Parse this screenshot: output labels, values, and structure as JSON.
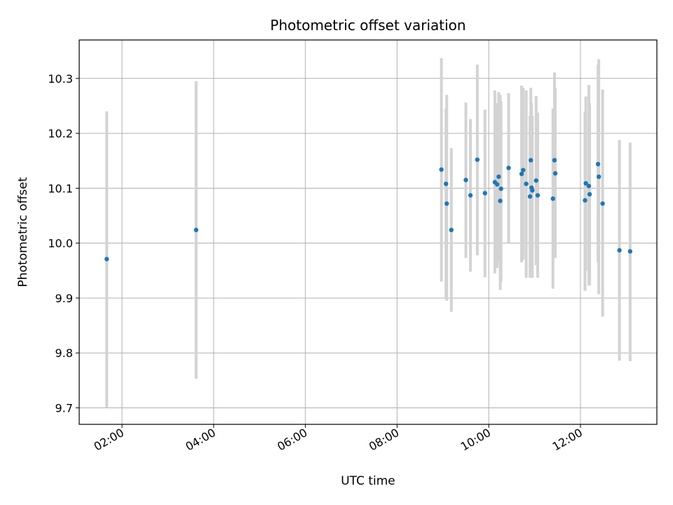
{
  "chart_data": {
    "type": "scatter",
    "title": "Photometric offset variation",
    "xlabel": "UTC time",
    "ylabel": "Photometric offset",
    "x_unit": "hours",
    "xlim": [
      "01:04",
      "13:40"
    ],
    "ylim": [
      9.67,
      10.37
    ],
    "grid": true,
    "x_ticks": [
      "02:00",
      "04:00",
      "06:00",
      "08:00",
      "10:00",
      "12:00"
    ],
    "y_ticks": [
      "9.7",
      "9.8",
      "9.9",
      "10.0",
      "10.1",
      "10.2",
      "10.3"
    ],
    "marker_color": "#1f77b4",
    "errorbar_color": "#d3d3d3",
    "points": [
      {
        "x": "01:40",
        "y": 9.971,
        "lo": 9.7,
        "hi": 10.24
      },
      {
        "x": "03:37",
        "y": 10.024,
        "lo": 9.753,
        "hi": 10.295
      },
      {
        "x": "08:58",
        "y": 10.134,
        "lo": 9.93,
        "hi": 10.337
      },
      {
        "x": "09:04",
        "y": 10.108,
        "lo": 9.9,
        "hi": 10.245
      },
      {
        "x": "09:05",
        "y": 10.072,
        "lo": 9.895,
        "hi": 10.27
      },
      {
        "x": "09:11",
        "y": 10.024,
        "lo": 9.875,
        "hi": 10.173
      },
      {
        "x": "09:30",
        "y": 10.115,
        "lo": 9.973,
        "hi": 10.256
      },
      {
        "x": "09:36",
        "y": 10.087,
        "lo": 9.948,
        "hi": 10.226
      },
      {
        "x": "09:45",
        "y": 10.152,
        "lo": 9.978,
        "hi": 10.325
      },
      {
        "x": "09:55",
        "y": 10.091,
        "lo": 9.938,
        "hi": 10.243
      },
      {
        "x": "10:08",
        "y": 10.111,
        "lo": 9.945,
        "hi": 10.278
      },
      {
        "x": "10:11",
        "y": 10.107,
        "lo": 9.955,
        "hi": 10.255
      },
      {
        "x": "10:13",
        "y": 10.121,
        "lo": 9.968,
        "hi": 10.275
      },
      {
        "x": "10:15",
        "y": 10.077,
        "lo": 9.915,
        "hi": 10.27
      },
      {
        "x": "10:16",
        "y": 10.099,
        "lo": 9.93,
        "hi": 10.258
      },
      {
        "x": "10:26",
        "y": 10.137,
        "lo": 10.0,
        "hi": 10.273
      },
      {
        "x": "10:43",
        "y": 10.126,
        "lo": 9.965,
        "hi": 10.287
      },
      {
        "x": "10:45",
        "y": 10.133,
        "lo": 9.97,
        "hi": 10.283
      },
      {
        "x": "10:49",
        "y": 10.108,
        "lo": 9.937,
        "hi": 10.278
      },
      {
        "x": "10:54",
        "y": 10.085,
        "lo": 9.937,
        "hi": 10.232
      },
      {
        "x": "10:55",
        "y": 10.151,
        "lo": 9.985,
        "hi": 10.283
      },
      {
        "x": "10:56",
        "y": 10.101,
        "lo": 9.95,
        "hi": 10.255
      },
      {
        "x": "10:57",
        "y": 10.096,
        "lo": 9.937,
        "hi": 10.232
      },
      {
        "x": "11:02",
        "y": 10.114,
        "lo": 9.96,
        "hi": 10.268
      },
      {
        "x": "11:04",
        "y": 10.087,
        "lo": 9.937,
        "hi": 10.238
      },
      {
        "x": "11:24",
        "y": 10.081,
        "lo": 9.917,
        "hi": 10.245
      },
      {
        "x": "11:26",
        "y": 10.151,
        "lo": 9.99,
        "hi": 10.311
      },
      {
        "x": "11:27",
        "y": 10.127,
        "lo": 9.973,
        "hi": 10.283
      },
      {
        "x": "12:06",
        "y": 10.078,
        "lo": 9.913,
        "hi": 10.24
      },
      {
        "x": "12:07",
        "y": 10.109,
        "lo": 9.95,
        "hi": 10.267
      },
      {
        "x": "12:11",
        "y": 10.104,
        "lo": 9.923,
        "hi": 10.288
      },
      {
        "x": "12:12",
        "y": 10.089,
        "lo": 9.923,
        "hi": 10.255
      },
      {
        "x": "12:23",
        "y": 10.144,
        "lo": 9.965,
        "hi": 10.325
      },
      {
        "x": "12:24",
        "y": 10.121,
        "lo": 9.907,
        "hi": 10.335
      },
      {
        "x": "12:29",
        "y": 10.072,
        "lo": 9.866,
        "hi": 10.28
      },
      {
        "x": "12:51",
        "y": 9.987,
        "lo": 9.786,
        "hi": 10.188
      },
      {
        "x": "13:05",
        "y": 9.985,
        "lo": 9.785,
        "hi": 10.183
      }
    ]
  }
}
